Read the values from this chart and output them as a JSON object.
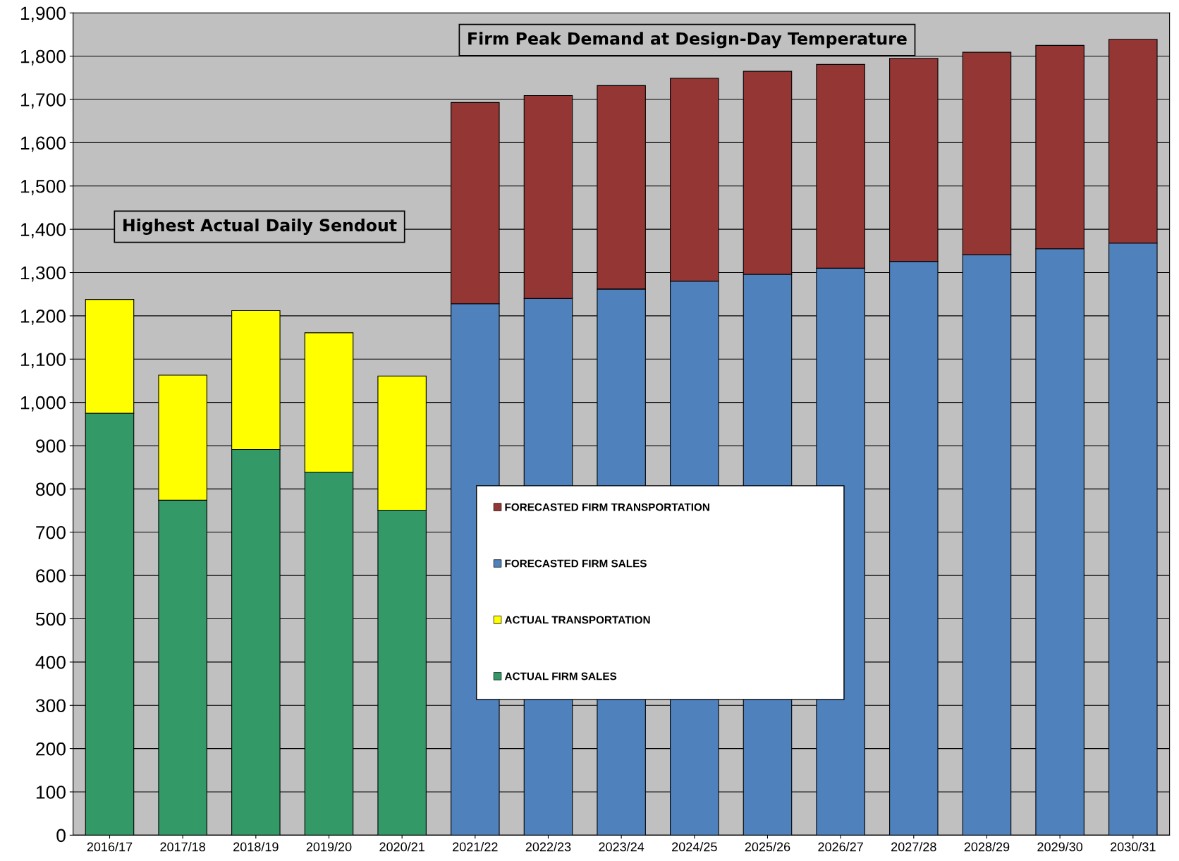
{
  "chart_data": {
    "type": "bar",
    "stacked": true,
    "categories": [
      "2016/17",
      "2017/18",
      "2018/19",
      "2019/20",
      "2020/21",
      "2021/22",
      "2022/23",
      "2023/24",
      "2024/25",
      "2025/26",
      "2026/27",
      "2027/28",
      "2028/29",
      "2029/30",
      "2030/31"
    ],
    "series": [
      {
        "name": "ACTUAL FIRM SALES",
        "color": "#339966",
        "values": [
          975,
          774,
          891,
          839,
          751,
          null,
          null,
          null,
          null,
          null,
          null,
          null,
          null,
          null,
          null
        ]
      },
      {
        "name": "ACTUAL TRANSPORTATION",
        "color": "#ffff00",
        "values": [
          263,
          289,
          321,
          322,
          310,
          null,
          null,
          null,
          null,
          null,
          null,
          null,
          null,
          null,
          null
        ]
      },
      {
        "name": "FORECASTED FIRM SALES",
        "color": "#4f81bd",
        "values": [
          null,
          null,
          null,
          null,
          null,
          1228,
          1240,
          1262,
          1280,
          1296,
          1310,
          1326,
          1341,
          1355,
          1368
        ]
      },
      {
        "name": "FORECASTED FIRM TRANSPORTATION",
        "color": "#943634",
        "values": [
          null,
          null,
          null,
          null,
          null,
          465,
          469,
          470,
          469,
          469,
          471,
          469,
          468,
          470,
          471
        ]
      }
    ],
    "ylim": [
      0,
      1900
    ],
    "yticks": [
      0,
      100,
      200,
      300,
      400,
      500,
      600,
      700,
      800,
      900,
      {
        "value": 1000,
        "label": "1,000"
      },
      {
        "value": 1100,
        "label": "1,100"
      },
      {
        "value": 1200,
        "label": "1,200"
      },
      {
        "value": 1300,
        "label": "1,300"
      },
      {
        "value": 1400,
        "label": "1,400"
      },
      {
        "value": 1500,
        "label": "1,500"
      },
      {
        "value": 1600,
        "label": "1,600"
      },
      {
        "value": 1700,
        "label": "1,700"
      },
      {
        "value": 1800,
        "label": "1,800"
      },
      {
        "value": 1900,
        "label": "1,900"
      }
    ],
    "grid": "y",
    "legend": "center",
    "annotations": [
      "Firm Peak Demand at Design-Day Temperature",
      "Highest Actual Daily Sendout"
    ]
  }
}
